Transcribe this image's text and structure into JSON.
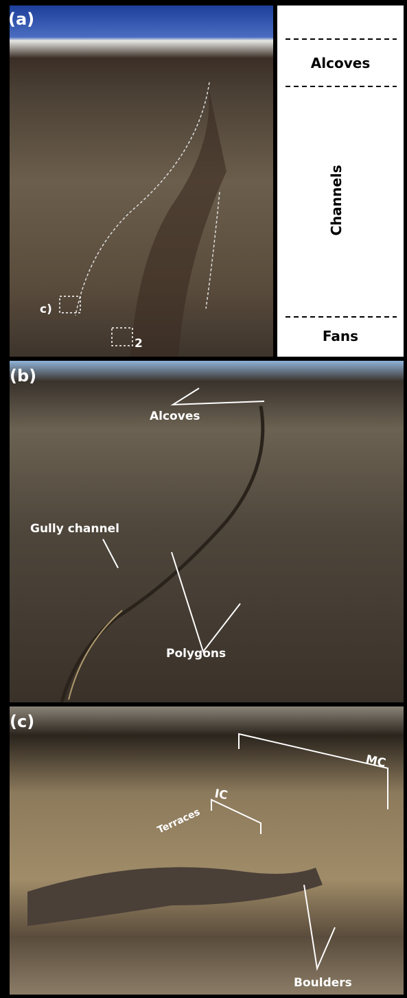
{
  "panels": [
    {
      "label": "(a)",
      "annotations": [
        "c)",
        "2"
      ],
      "zones": [
        "Alcoves",
        "Channels",
        "Fans"
      ]
    },
    {
      "label": "(b)",
      "annotations": [
        "Alcoves",
        "Gully channel",
        "Polygons"
      ]
    },
    {
      "label": "(c)",
      "annotations": [
        "Terraces",
        "IC",
        "MC",
        "Boulders"
      ]
    }
  ]
}
